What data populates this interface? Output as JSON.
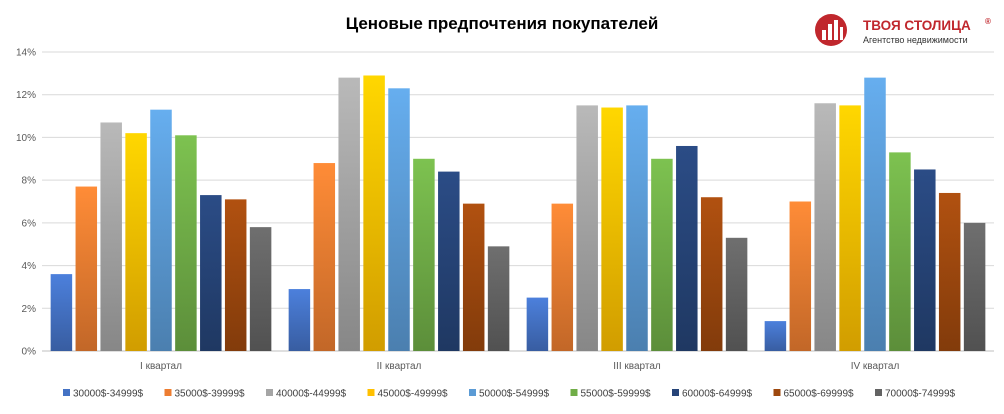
{
  "chart_data": {
    "type": "bar",
    "title": "Ценовые предпочтения покупателей",
    "categories": [
      "I квартал",
      "II квартал",
      "III квартал",
      "IV квартал"
    ],
    "ylim": [
      0,
      14
    ],
    "yticks": [
      0,
      2,
      4,
      6,
      8,
      10,
      12,
      14
    ],
    "ytick_suffix": "%",
    "grid": true,
    "legend_position": "bottom",
    "series": [
      {
        "name": "30000$-34999$",
        "color": "#4472c4",
        "values": [
          3.6,
          2.9,
          2.5,
          1.4
        ]
      },
      {
        "name": "35000$-39999$",
        "color": "#ed7d31",
        "values": [
          7.7,
          8.8,
          6.9,
          7.0
        ]
      },
      {
        "name": "40000$-44999$",
        "color": "#a5a5a5",
        "values": [
          10.7,
          12.8,
          11.5,
          11.6
        ]
      },
      {
        "name": "45000$-49999$",
        "color": "#ffc000",
        "values": [
          10.2,
          12.9,
          11.4,
          11.5
        ]
      },
      {
        "name": "50000$-54999$",
        "color": "#5b9bd5",
        "values": [
          11.3,
          12.3,
          11.5,
          12.8
        ]
      },
      {
        "name": "55000$-59999$",
        "color": "#70ad47",
        "values": [
          10.1,
          9.0,
          9.0,
          9.3
        ]
      },
      {
        "name": "60000$-64999$",
        "color": "#264478",
        "values": [
          7.3,
          8.4,
          9.6,
          8.5
        ]
      },
      {
        "name": "65000$-69999$",
        "color": "#9e480e",
        "values": [
          7.1,
          6.9,
          7.2,
          7.4
        ]
      },
      {
        "name": "70000$-74999$",
        "color": "#636363",
        "values": [
          5.8,
          4.9,
          5.3,
          6.0
        ]
      }
    ]
  },
  "logo": {
    "name": "ТВОЯ СТОЛИЦА",
    "reg_mark": "®",
    "tagline": "Агентство недвижимости",
    "color": "#c0272d"
  }
}
